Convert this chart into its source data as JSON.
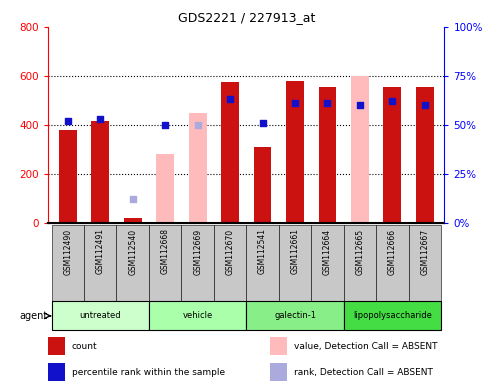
{
  "title": "GDS2221 / 227913_at",
  "samples": [
    "GSM112490",
    "GSM112491",
    "GSM112540",
    "GSM112668",
    "GSM112669",
    "GSM112670",
    "GSM112541",
    "GSM112661",
    "GSM112664",
    "GSM112665",
    "GSM112666",
    "GSM112667"
  ],
  "groups": [
    {
      "label": "untreated",
      "indices": [
        0,
        1,
        2
      ],
      "color": "#ccffcc"
    },
    {
      "label": "vehicle",
      "indices": [
        3,
        4,
        5
      ],
      "color": "#aaffaa"
    },
    {
      "label": "galectin-1",
      "indices": [
        6,
        7,
        8
      ],
      "color": "#88ee88"
    },
    {
      "label": "lipopolysaccharide",
      "indices": [
        9,
        10,
        11
      ],
      "color": "#44dd44"
    }
  ],
  "count_values": [
    380,
    415,
    20,
    null,
    null,
    575,
    308,
    580,
    555,
    null,
    553,
    553
  ],
  "count_absent_values": [
    null,
    null,
    null,
    280,
    450,
    null,
    null,
    null,
    null,
    600,
    null,
    null
  ],
  "rank_values_pct": [
    52,
    53,
    null,
    50,
    null,
    63,
    51,
    61,
    61,
    60,
    62,
    60
  ],
  "rank_absent_values_pct": [
    null,
    null,
    12,
    null,
    50,
    null,
    null,
    null,
    null,
    null,
    null,
    null
  ],
  "ylim_left": [
    0,
    800
  ],
  "ylim_right": [
    0,
    100
  ],
  "yticks_left": [
    0,
    200,
    400,
    600,
    800
  ],
  "yticks_right": [
    0,
    25,
    50,
    75,
    100
  ],
  "ytick_labels_left": [
    "0",
    "200",
    "400",
    "600",
    "800"
  ],
  "ytick_labels_right": [
    "0%",
    "25%",
    "50%",
    "75%",
    "100%"
  ],
  "bar_width": 0.55,
  "count_color": "#cc1111",
  "count_absent_color": "#ffbbbb",
  "rank_color": "#1111cc",
  "rank_absent_color": "#aaaadd",
  "rank_marker_size": 25,
  "background_color": "#ffffff",
  "tick_label_bg": "#c8c8c8",
  "legend_items": [
    {
      "label": "count",
      "color": "#cc1111"
    },
    {
      "label": "percentile rank within the sample",
      "color": "#1111cc"
    },
    {
      "label": "value, Detection Call = ABSENT",
      "color": "#ffbbbb"
    },
    {
      "label": "rank, Detection Call = ABSENT",
      "color": "#aaaadd"
    }
  ]
}
